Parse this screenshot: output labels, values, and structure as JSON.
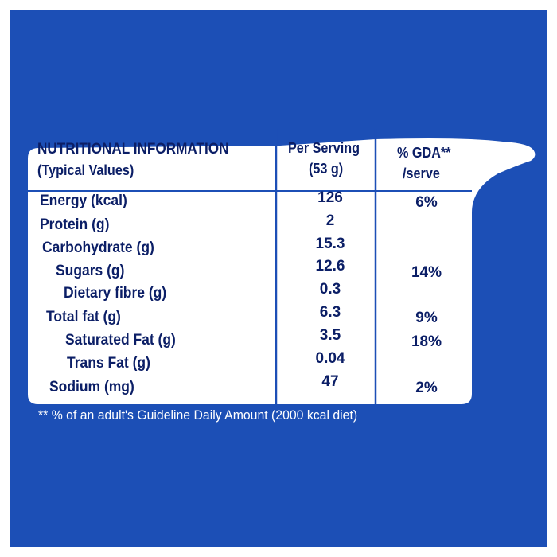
{
  "colors": {
    "background": "#1c4fb6",
    "label": "#ffffff",
    "text": "#0b1e66"
  },
  "header": {
    "title": "NUTRITIONAL INFORMATION",
    "subtitle": "(Typical Values)",
    "col1_line1": "Per Serving",
    "col1_line2": "(53 g)",
    "col2_line1": "% GDA**",
    "col2_line2": "/serve"
  },
  "rows": [
    {
      "label": "Energy (kcal)",
      "per_serving": "126",
      "gda": "6%"
    },
    {
      "label": "Protein (g)",
      "per_serving": "2",
      "gda": ""
    },
    {
      "label": "Carbohydrate (g)",
      "per_serving": "15.3",
      "gda": ""
    },
    {
      "label": "Sugars (g)",
      "per_serving": "12.6",
      "gda": "14%"
    },
    {
      "label": "Dietary fibre (g)",
      "per_serving": "0.3",
      "gda": ""
    },
    {
      "label": "Total fat (g)",
      "per_serving": "6.3",
      "gda": "9%"
    },
    {
      "label": "Saturated Fat (g)",
      "per_serving": "3.5",
      "gda": "18%"
    },
    {
      "label": "Trans Fat (g)",
      "per_serving": "0.04",
      "gda": ""
    },
    {
      "label": "Sodium (mg)",
      "per_serving": "47",
      "gda": "2%"
    }
  ],
  "footnote": "** % of an adult's Guideline Daily Amount (2000 kcal diet)"
}
